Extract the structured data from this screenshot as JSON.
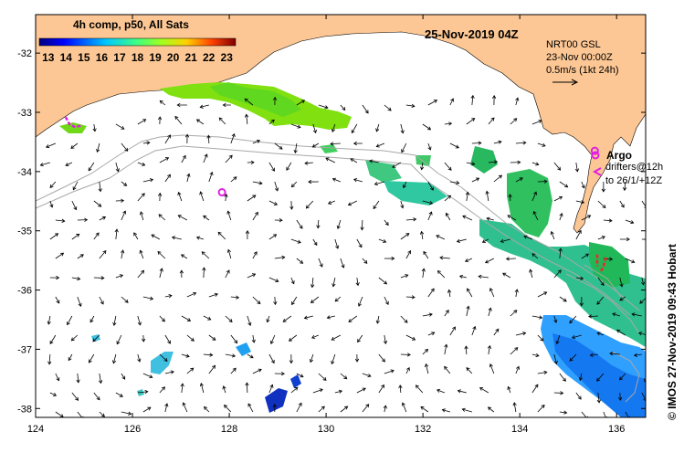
{
  "map": {
    "title": "25-Nov-2019 04Z",
    "colorbar": {
      "label": "4h comp, p50, All Sats",
      "ticks": [
        "13",
        "14",
        "15",
        "16",
        "17",
        "18",
        "19",
        "20",
        "21",
        "22",
        "23"
      ],
      "min": 12.5,
      "max": 23.5
    },
    "info_box": {
      "line1": "NRT00 GSL",
      "line2": "23-Nov 00:00Z",
      "line3": "0.5m/s (1kt 24h)"
    },
    "argo": {
      "label": "Argo",
      "drifters_line1": "drifters@12h",
      "drifters_line2": "to 26/1/+12Z"
    },
    "credit": "© IMOS 27-Nov-2019 09:43 Hobart",
    "x_ticks": [
      "124",
      "126",
      "128",
      "130",
      "132",
      "134",
      "136"
    ],
    "y_ticks": [
      "-32",
      "-33",
      "-34",
      "-35",
      "-36",
      "-37",
      "-38"
    ],
    "lon_range": [
      124,
      136.6
    ],
    "lat_range": [
      -38.15,
      -31.35
    ],
    "colors": {
      "land": "#fcc794",
      "ocean": "#ffffff",
      "argo": "#e020e0",
      "drifter": "#ff2020",
      "bathymetry": "#b0b0b0",
      "frame": "#000000"
    },
    "argo_floats": [
      {
        "lon": 127.85,
        "lat": -34.35
      },
      {
        "lon": 135.55,
        "lat": -33.65
      }
    ],
    "drifter_tracks": [
      [
        [
          124.62,
          -33.08
        ],
        [
          124.7,
          -33.2
        ],
        [
          124.82,
          -33.25
        ],
        [
          124.95,
          -33.22
        ]
      ],
      [
        [
          135.6,
          -35.4
        ],
        [
          135.6,
          -35.6
        ]
      ],
      [
        [
          135.78,
          -35.45
        ],
        [
          135.72,
          -35.62
        ],
        [
          135.66,
          -35.7
        ]
      ]
    ]
  }
}
